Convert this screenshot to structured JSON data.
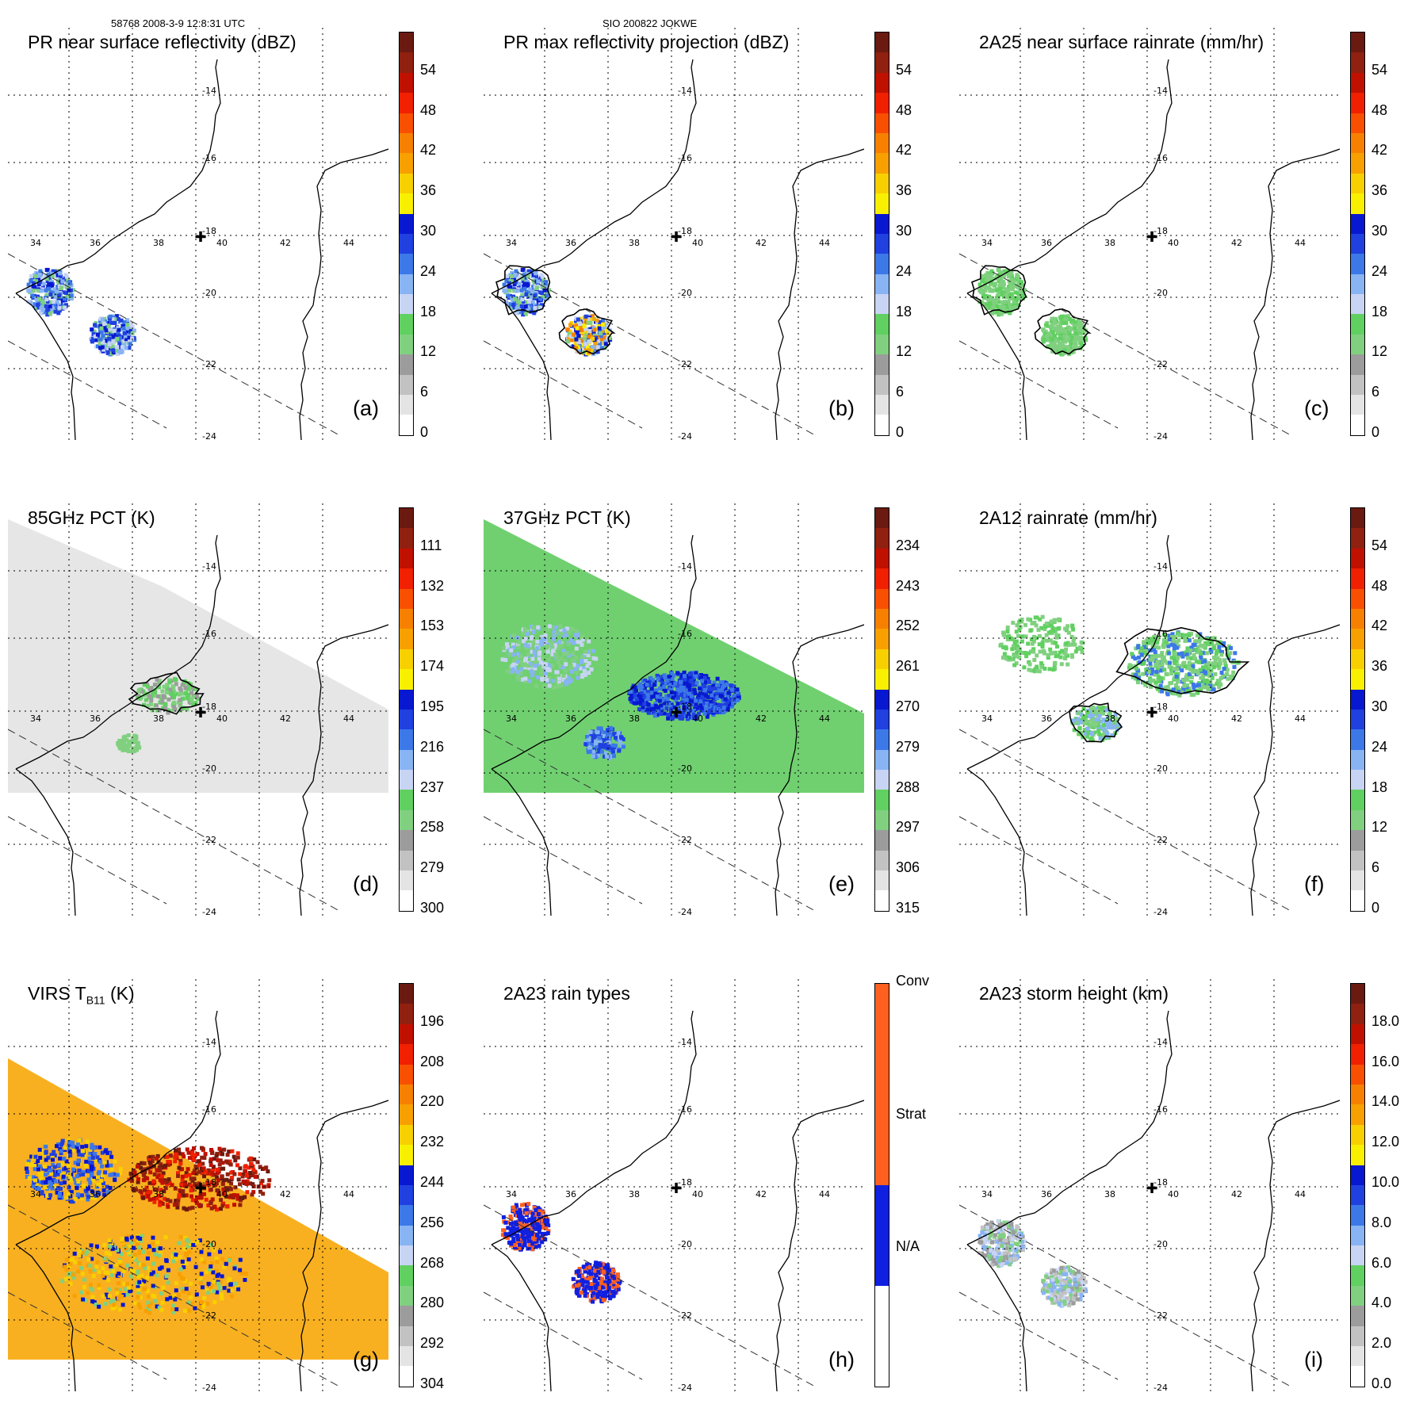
{
  "header": {
    "left": "58768 2008-3-9 12:8:31 UTC",
    "center": "SIO 200822 JOKWE"
  },
  "map": {
    "lon_labels": [
      "34",
      "36",
      "38",
      "40",
      "42",
      "44"
    ],
    "lat_labels": [
      "-14",
      "-16",
      "-18",
      "-20",
      "-22",
      "-24"
    ],
    "storm_marker": "✚"
  },
  "panels": [
    {
      "id": "a",
      "title": "PR near surface reflectivity (dBZ)",
      "label": "(a)",
      "ticks": [
        "54",
        "48",
        "42",
        "36",
        "30",
        "24",
        "18",
        "12",
        "6",
        "0"
      ]
    },
    {
      "id": "b",
      "title": "PR max reflectivity projection (dBZ)",
      "label": "(b)",
      "ticks": [
        "54",
        "48",
        "42",
        "36",
        "30",
        "24",
        "18",
        "12",
        "6",
        "0"
      ]
    },
    {
      "id": "c",
      "title": "2A25 near surface rainrate (mm/hr)",
      "label": "(c)",
      "ticks": [
        "54",
        "48",
        "42",
        "36",
        "30",
        "24",
        "18",
        "12",
        "6",
        "0"
      ]
    },
    {
      "id": "d",
      "title": "85GHz PCT (K)",
      "label": "(d)",
      "ticks": [
        "111",
        "132",
        "153",
        "174",
        "195",
        "216",
        "237",
        "258",
        "279",
        "300"
      ]
    },
    {
      "id": "e",
      "title": "37GHz PCT (K)",
      "label": "(e)",
      "ticks": [
        "234",
        "243",
        "252",
        "261",
        "270",
        "279",
        "288",
        "297",
        "306",
        "315"
      ]
    },
    {
      "id": "f",
      "title": "2A12 rainrate (mm/hr)",
      "label": "(f)",
      "ticks": [
        "54",
        "48",
        "42",
        "36",
        "30",
        "24",
        "18",
        "12",
        "6",
        "0"
      ]
    },
    {
      "id": "g",
      "title": "VIRS T",
      "title_sub": "B11",
      "title_tail": " (K)",
      "label": "(g)",
      "ticks": [
        "196",
        "208",
        "220",
        "232",
        "244",
        "256",
        "268",
        "280",
        "292",
        "304"
      ]
    },
    {
      "id": "h",
      "title": "2A23 rain types",
      "label": "(h)",
      "ticks": [
        "Conv",
        "Strat",
        "N/A"
      ]
    },
    {
      "id": "i",
      "title": "2A23 storm height (km)",
      "label": "(i)",
      "ticks": [
        "18.0",
        "16.0",
        "14.0",
        "12.0",
        "10.0",
        "8.0",
        "6.0",
        "4.0",
        "2.0",
        "0.0"
      ]
    }
  ],
  "colors": {
    "scale": [
      "#ffffff",
      "#e4e4e4",
      "#c2c2c2",
      "#9c9c9c",
      "#80d080",
      "#60d060",
      "#c8d4f4",
      "#88b4f4",
      "#3c78e8",
      "#2040e0",
      "#0818d0",
      "#f8f000",
      "#f8d000",
      "#f8a000",
      "#f88000",
      "#f85000",
      "#f02000",
      "#c01000",
      "#902010",
      "#6a1a10"
    ],
    "conv": "#ff6020",
    "strat": "#1020e0",
    "na": "#ffffff"
  }
}
